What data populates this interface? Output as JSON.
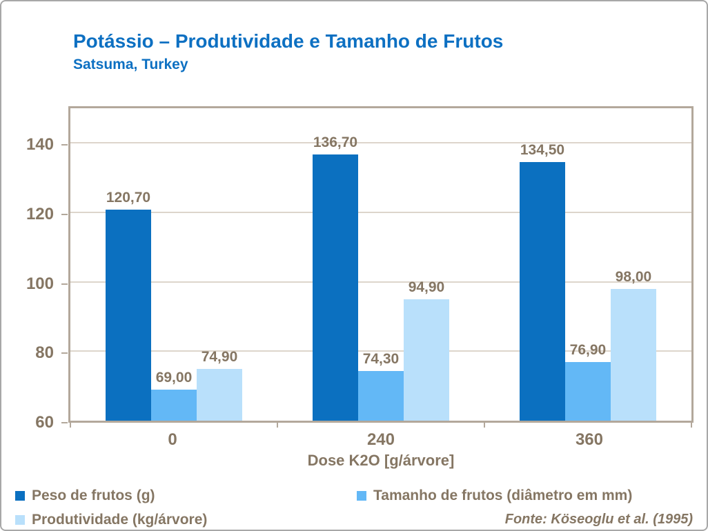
{
  "header": {
    "title": "Potássio – Produtividade e Tamanho de Frutos",
    "subtitle": "Satsuma, Turkey"
  },
  "source": {
    "text": "Fonte: Köseoglu  et al. (1995)"
  },
  "colors": {
    "title_blue": "#0d70c2",
    "axis_text": "#857663",
    "plot_border": "#b3a89b",
    "gridline": "#ddd5cb",
    "series_dark_blue": "#0b70c0",
    "series_mid_blue": "#63b8f6",
    "series_light_blue": "#b9e0fb"
  },
  "chart_data": {
    "type": "bar",
    "title": "Potássio – Produtividade e Tamanho de Frutos",
    "subtitle": "Satsuma, Turkey",
    "categories": [
      "0",
      "240",
      "360"
    ],
    "series": [
      {
        "name": "Peso de frutos (g)",
        "color": "#0b70c0",
        "values": [
          120.7,
          136.7,
          134.5
        ],
        "labels": [
          "120,70",
          "136,70",
          "134,50"
        ]
      },
      {
        "name": "Tamanho de frutos (diâmetro em mm)",
        "color": "#63b8f6",
        "values": [
          69.0,
          74.3,
          76.9
        ],
        "labels": [
          "69,00",
          "74,30",
          "76,90"
        ]
      },
      {
        "name": "Produtividade (kg/árvore)",
        "color": "#b9e0fb",
        "values": [
          74.9,
          94.9,
          98.0
        ],
        "labels": [
          "74,90",
          "94,90",
          "98,00"
        ]
      }
    ],
    "xlabel": "Dose K2O [g/árvore]",
    "ylabel": "",
    "ylim": [
      60,
      150
    ],
    "yticks": [
      60,
      80,
      100,
      120,
      140
    ],
    "grid": true,
    "legend_position": "bottom"
  }
}
